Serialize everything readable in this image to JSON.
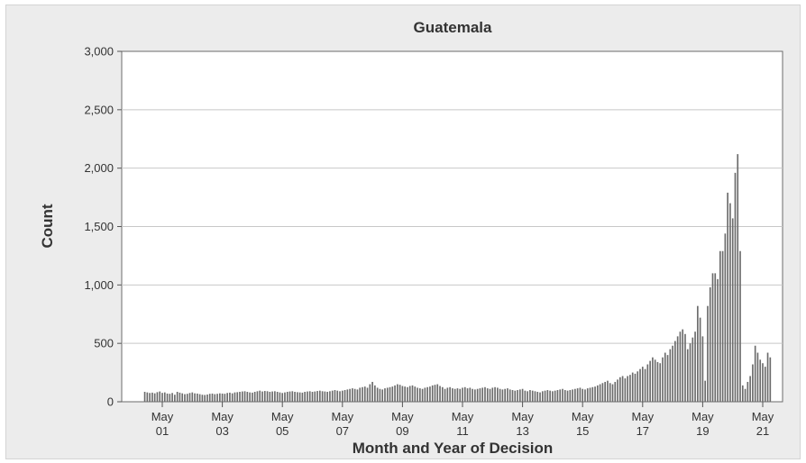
{
  "chart_data": {
    "type": "bar",
    "title": "Guatemala",
    "xlabel": "Month and Year of Decision",
    "ylabel": "Count",
    "ylim": [
      0,
      3000
    ],
    "y_ticks": [
      {
        "value": 0,
        "label": "0"
      },
      {
        "value": 500,
        "label": "500"
      },
      {
        "value": 1000,
        "label": "1,000"
      },
      {
        "value": 1500,
        "label": "1,500"
      },
      {
        "value": 2000,
        "label": "2,000"
      },
      {
        "value": 2500,
        "label": "2,500"
      },
      {
        "value": 3000,
        "label": "3,000"
      }
    ],
    "x_ticks": [
      {
        "month": "May",
        "year": "01"
      },
      {
        "month": "May",
        "year": "03"
      },
      {
        "month": "May",
        "year": "05"
      },
      {
        "month": "May",
        "year": "07"
      },
      {
        "month": "May",
        "year": "09"
      },
      {
        "month": "May",
        "year": "11"
      },
      {
        "month": "May",
        "year": "13"
      },
      {
        "month": "May",
        "year": "15"
      },
      {
        "month": "May",
        "year": "17"
      },
      {
        "month": "May",
        "year": "19"
      },
      {
        "month": "May",
        "year": "21"
      }
    ],
    "x_start": "2000-10",
    "grid": true,
    "bar_color": "#6b6b6b",
    "values": [
      85,
      80,
      75,
      78,
      72,
      82,
      88,
      76,
      80,
      70,
      68,
      75,
      60,
      85,
      78,
      72,
      65,
      68,
      75,
      80,
      72,
      70,
      65,
      60,
      58,
      62,
      68,
      70,
      65,
      68,
      72,
      70,
      68,
      75,
      78,
      72,
      80,
      82,
      85,
      88,
      90,
      85,
      80,
      78,
      85,
      90,
      95,
      88,
      92,
      90,
      85,
      88,
      90,
      85,
      80,
      75,
      80,
      85,
      88,
      90,
      85,
      82,
      80,
      78,
      85,
      88,
      90,
      85,
      88,
      92,
      95,
      90,
      88,
      85,
      90,
      95,
      100,
      95,
      90,
      95,
      100,
      105,
      110,
      115,
      110,
      105,
      120,
      125,
      130,
      120,
      150,
      170,
      140,
      120,
      110,
      105,
      115,
      120,
      125,
      130,
      140,
      150,
      145,
      135,
      130,
      125,
      135,
      140,
      130,
      120,
      115,
      110,
      120,
      125,
      130,
      140,
      145,
      150,
      135,
      125,
      110,
      120,
      125,
      115,
      110,
      115,
      110,
      120,
      125,
      115,
      120,
      110,
      105,
      110,
      115,
      120,
      125,
      115,
      110,
      120,
      125,
      120,
      110,
      105,
      110,
      115,
      105,
      100,
      95,
      100,
      105,
      110,
      95,
      90,
      100,
      95,
      90,
      85,
      80,
      90,
      95,
      100,
      95,
      90,
      95,
      100,
      105,
      110,
      100,
      95,
      100,
      105,
      110,
      115,
      120,
      110,
      105,
      115,
      120,
      125,
      130,
      140,
      150,
      160,
      170,
      180,
      160,
      150,
      170,
      190,
      210,
      220,
      200,
      220,
      230,
      250,
      240,
      260,
      280,
      300,
      280,
      320,
      350,
      380,
      360,
      340,
      330,
      380,
      420,
      400,
      450,
      480,
      520,
      560,
      600,
      620,
      580,
      450,
      500,
      550,
      600,
      820,
      720,
      560,
      180,
      820,
      980,
      1100,
      1100,
      1050,
      1290,
      1290,
      1440,
      1790,
      1700,
      1570,
      1960,
      2120,
      1290,
      140,
      110,
      170,
      220,
      320,
      480,
      420,
      360,
      330,
      300,
      420,
      380
    ]
  }
}
